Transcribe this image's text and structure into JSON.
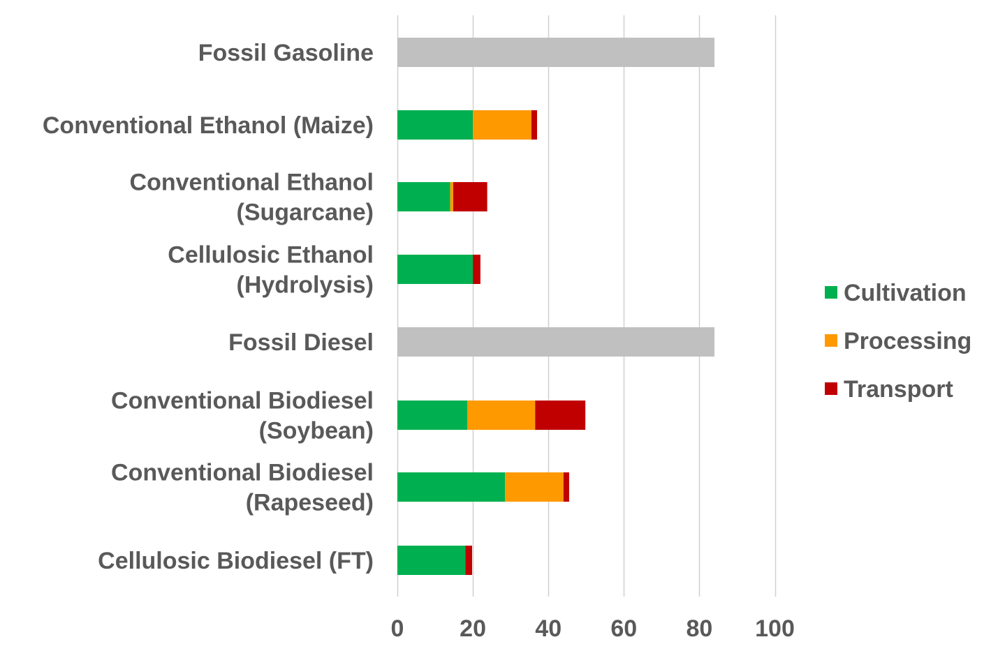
{
  "chart_data": {
    "type": "bar",
    "orientation": "horizontal",
    "stacked": true,
    "categories": [
      [
        "Fossil Gasoline"
      ],
      [
        "Conventional Ethanol (Maize)"
      ],
      [
        "Conventional Ethanol",
        "(Sugarcane)"
      ],
      [
        "Cellulosic Ethanol",
        "(Hydrolysis)"
      ],
      [
        "Fossil Diesel"
      ],
      [
        "Conventional Biodiesel",
        "(Soybean)"
      ],
      [
        "Conventional Biodiesel",
        "(Rapeseed)"
      ],
      [
        "Cellulosic Biodiesel (FT)"
      ]
    ],
    "fossil_values": [
      84,
      null,
      null,
      null,
      84,
      null,
      null,
      null
    ],
    "fossil_color": "#c0c0c0",
    "series": [
      {
        "name": "Cultivation",
        "color": "#00b050",
        "values": [
          null,
          20,
          14,
          20,
          null,
          18.5,
          28.5,
          18
        ]
      },
      {
        "name": "Processing",
        "color": "#ff9900",
        "values": [
          null,
          15.5,
          0.8,
          0,
          null,
          18,
          15.5,
          0
        ]
      },
      {
        "name": "Transport",
        "color": "#c00000",
        "values": [
          null,
          1.5,
          9,
          2,
          null,
          13.3,
          1.5,
          1.8
        ]
      }
    ],
    "xlim": [
      0,
      100
    ],
    "xticks": [
      0,
      20,
      40,
      60,
      80,
      100
    ],
    "xlabel": "",
    "ylabel": "",
    "title": "",
    "grid": true,
    "legend_position": "right"
  }
}
